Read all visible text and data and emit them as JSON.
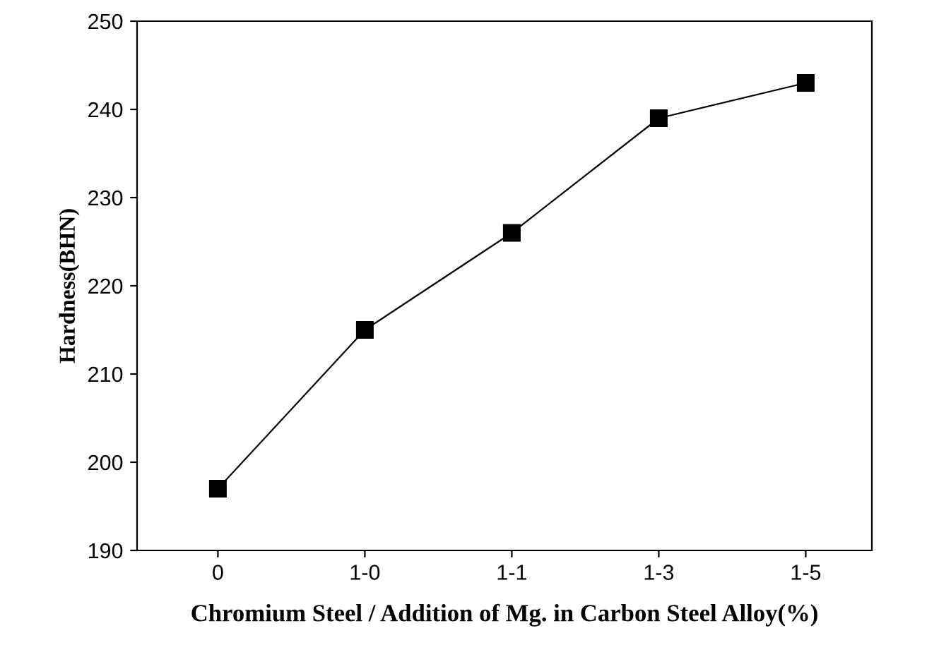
{
  "chart_data": {
    "type": "line",
    "xlabel": "Chromium Steel / Addition of Mg. in Carbon Steel Alloy(%)",
    "ylabel": "Hardness(BHN)",
    "categories": [
      "0",
      "1-0",
      "1-1",
      "1-3",
      "1-5"
    ],
    "series": [
      {
        "color": "#000000",
        "values": [
          197,
          215,
          226,
          239,
          243
        ]
      }
    ],
    "ylim": [
      190,
      250
    ],
    "yticks": [
      190,
      200,
      210,
      220,
      230,
      240,
      250
    ],
    "marker": "square",
    "line_style": "solid",
    "grid": false,
    "legend": false
  }
}
